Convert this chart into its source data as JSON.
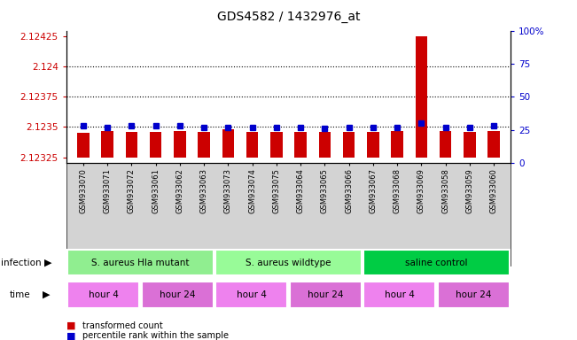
{
  "title": "GDS4582 / 1432976_at",
  "samples": [
    "GSM933070",
    "GSM933071",
    "GSM933072",
    "GSM933061",
    "GSM933062",
    "GSM933063",
    "GSM933073",
    "GSM933074",
    "GSM933075",
    "GSM933064",
    "GSM933065",
    "GSM933066",
    "GSM933067",
    "GSM933068",
    "GSM933069",
    "GSM933058",
    "GSM933059",
    "GSM933060"
  ],
  "red_values": [
    2.12345,
    2.12347,
    2.12346,
    2.12346,
    2.12347,
    2.12346,
    2.12348,
    2.12346,
    2.12346,
    2.12346,
    2.12346,
    2.12346,
    2.12346,
    2.12347,
    2.12425,
    2.12347,
    2.12346,
    2.12347
  ],
  "blue_values": [
    28,
    27,
    28,
    28,
    28,
    27,
    27,
    27,
    27,
    27,
    26,
    27,
    27,
    27,
    30,
    27,
    27,
    28
  ],
  "y_min": 2.1232,
  "y_max": 2.1243,
  "y_ticks": [
    2.12325,
    2.1235,
    2.12375,
    2.124,
    2.12425
  ],
  "y_tick_labels": [
    "2.12325",
    "2.1235",
    "2.12375",
    "2.124",
    "2.12425"
  ],
  "right_y_ticks": [
    0,
    25,
    50,
    75,
    100
  ],
  "right_y_labels": [
    "0",
    "25",
    "50",
    "75",
    "100%"
  ],
  "dotted_lines": [
    2.1235,
    2.12375,
    2.124
  ],
  "base_value": 2.12325,
  "infection_groups": [
    {
      "label": "S. aureus Hla mutant",
      "start": 0,
      "end": 6,
      "color": "#90EE90"
    },
    {
      "label": "S. aureus wildtype",
      "start": 6,
      "end": 12,
      "color": "#98FB98"
    },
    {
      "label": "saline control",
      "start": 12,
      "end": 18,
      "color": "#00CC44"
    }
  ],
  "time_groups": [
    {
      "label": "hour 4",
      "start": 0,
      "end": 3,
      "color": "#EE82EE"
    },
    {
      "label": "hour 24",
      "start": 3,
      "end": 6,
      "color": "#DA70D6"
    },
    {
      "label": "hour 4",
      "start": 6,
      "end": 9,
      "color": "#EE82EE"
    },
    {
      "label": "hour 24",
      "start": 9,
      "end": 12,
      "color": "#DA70D6"
    },
    {
      "label": "hour 4",
      "start": 12,
      "end": 15,
      "color": "#EE82EE"
    },
    {
      "label": "hour 24",
      "start": 15,
      "end": 18,
      "color": "#DA70D6"
    }
  ],
  "bar_color": "#CC0000",
  "dot_color": "#0000CC",
  "bar_width": 0.5,
  "background_color": "#ffffff",
  "tick_label_color_left": "#CC0000",
  "tick_label_color_right": "#0000CC"
}
